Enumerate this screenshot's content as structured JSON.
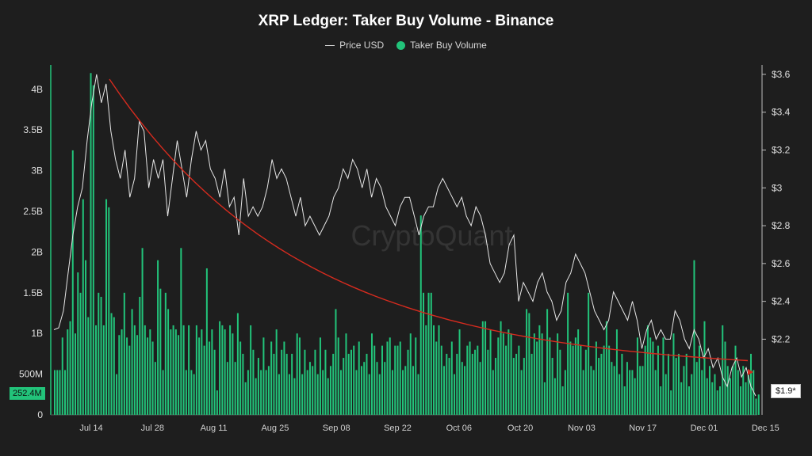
{
  "chart_data": {
    "type": "bar",
    "title": "XRP Ledger: Taker Buy Volume - Binance",
    "legend": [
      {
        "name": "Price USD",
        "color": "#cfcfcf",
        "marker": "line"
      },
      {
        "name": "Taker Buy Volume",
        "color": "#22c37a",
        "marker": "dot"
      }
    ],
    "watermark": "CryptoQuant",
    "x_ticks": [
      "Jul 14",
      "Jul 28",
      "Aug 11",
      "Aug 25",
      "Sep 08",
      "Sep 22",
      "Oct 06",
      "Oct 20",
      "Nov 03",
      "Nov 17",
      "Dec 01",
      "Dec 15"
    ],
    "y_left_ticks": [
      "0",
      "500M",
      "1B",
      "1.5B",
      "2B",
      "2.5B",
      "3B",
      "3.5B",
      "4B"
    ],
    "y_left_range": [
      0,
      4300000000
    ],
    "y_right_ticks": [
      "$2.2",
      "$2.4",
      "$2.6",
      "$2.8",
      "$3",
      "$3.2",
      "$3.4",
      "$3.6"
    ],
    "y_right_range": [
      1.8,
      3.65
    ],
    "current_volume_label": "252.4M",
    "current_price_label": "$1.9*",
    "series": [
      {
        "name": "Taker Buy Volume",
        "unit": "USD",
        "values": [
          0.55,
          0.55,
          0.55,
          0.95,
          0.55,
          1.05,
          1.15,
          3.25,
          1.0,
          1.75,
          1.5,
          2.65,
          1.9,
          1.2,
          4.2,
          4.05,
          1.1,
          1.5,
          1.45,
          1.1,
          2.65,
          2.55,
          1.25,
          1.2,
          0.5,
          0.98,
          1.05,
          1.5,
          0.95,
          0.85,
          1.3,
          1.1,
          0.98,
          1.45,
          2.05,
          1.1,
          0.95,
          1.05,
          0.9,
          0.65,
          1.9,
          1.55,
          0.55,
          1.5,
          1.3,
          1.05,
          1.1,
          1.05,
          0.98,
          2.05,
          1.1,
          0.55,
          1.1,
          0.55,
          0.5,
          1.1,
          0.95,
          1.05,
          0.85,
          1.8,
          0.9,
          1.05,
          0.8,
          0.3,
          1.15,
          1.1,
          1.05,
          0.65,
          1.1,
          1.0,
          0.65,
          1.25,
          0.9,
          0.75,
          0.4,
          0.55,
          1.1,
          0.8,
          0.45,
          0.7,
          0.55,
          0.95,
          0.55,
          0.6,
          0.9,
          0.75,
          1.05,
          0.5,
          0.8,
          0.9,
          0.75,
          0.5,
          0.75,
          0.45,
          1.0,
          0.95,
          0.5,
          0.8,
          0.55,
          0.65,
          0.6,
          0.8,
          0.5,
          0.95,
          0.55,
          0.8,
          0.45,
          0.6,
          0.75,
          1.3,
          0.95,
          0.55,
          0.7,
          1.0,
          0.75,
          0.8,
          0.85,
          0.55,
          0.9,
          0.6,
          0.65,
          0.75,
          0.5,
          1.0,
          0.85,
          0.65,
          0.5,
          0.85,
          0.65,
          0.9,
          0.95,
          0.55,
          0.85,
          0.85,
          0.9,
          0.55,
          0.6,
          0.8,
          1.0,
          0.6,
          0.95,
          0.5,
          2.45,
          1.5,
          1.1,
          1.5,
          1.5,
          1.1,
          0.9,
          1.1,
          0.85,
          0.6,
          0.75,
          0.7,
          0.9,
          0.5,
          0.75,
          1.05,
          0.65,
          0.6,
          0.85,
          0.9,
          0.75,
          0.8,
          0.85,
          0.65,
          1.15,
          1.15,
          0.8,
          1.05,
          0.55,
          0.7,
          0.95,
          1.15,
          1.0,
          0.85,
          1.05,
          1.0,
          0.7,
          0.75,
          0.85,
          0.55,
          0.7,
          1.3,
          1.25,
          0.75,
          1.0,
          0.9,
          1.1,
          1.0,
          0.4,
          1.3,
          0.95,
          0.7,
          0.45,
          1.0,
          0.8,
          0.35,
          0.55,
          1.5,
          0.9,
          0.85,
          0.95,
          1.05,
          0.85,
          0.55,
          0.8,
          1.5,
          0.6,
          0.55,
          0.9,
          0.7,
          0.75,
          0.85,
          1.15,
          0.85,
          0.65,
          0.6,
          1.05,
          0.5,
          0.75,
          0.35,
          0.65,
          0.55,
          0.55,
          0.45,
          0.95,
          0.6,
          0.6,
          0.85,
          1.1,
          0.95,
          0.9,
          0.55,
          0.85,
          0.35,
          0.95,
          0.5,
          0.75,
          0.3,
          1.0,
          0.7,
          0.75,
          0.4,
          0.6,
          0.75,
          0.35,
          0.5,
          1.9,
          0.65,
          0.85,
          0.55,
          1.15,
          0.45,
          0.6,
          0.4,
          0.5,
          0.3,
          0.35,
          1.1,
          0.9,
          0.6,
          0.45,
          0.6,
          0.85,
          0.55,
          0.35,
          0.6,
          0.4,
          0.5,
          0.75,
          0.55,
          0.2,
          0.25
        ]
      },
      {
        "name": "Price USD",
        "unit": "USD",
        "values": [
          2.25,
          2.26,
          2.35,
          2.55,
          2.75,
          2.9,
          3.0,
          3.25,
          3.45,
          3.6,
          3.45,
          3.55,
          3.3,
          3.15,
          3.05,
          3.2,
          2.95,
          3.05,
          3.35,
          3.3,
          3.0,
          3.15,
          3.05,
          3.15,
          2.85,
          3.05,
          3.25,
          3.1,
          2.95,
          3.15,
          3.3,
          3.2,
          3.25,
          3.1,
          3.05,
          2.95,
          3.1,
          2.9,
          2.95,
          2.75,
          3.05,
          2.85,
          2.9,
          2.85,
          2.9,
          3.0,
          3.15,
          3.05,
          3.1,
          3.05,
          2.95,
          2.85,
          2.95,
          2.8,
          2.85,
          2.8,
          2.75,
          2.8,
          2.85,
          2.95,
          3.0,
          3.1,
          3.05,
          3.15,
          3.1,
          3.0,
          3.1,
          2.95,
          3.05,
          3.0,
          2.9,
          2.85,
          2.8,
          2.9,
          2.95,
          2.95,
          2.85,
          2.75,
          2.85,
          2.9,
          2.9,
          3.0,
          3.05,
          3.0,
          2.95,
          2.9,
          2.95,
          2.85,
          2.8,
          2.9,
          2.85,
          2.75,
          2.6,
          2.55,
          2.5,
          2.55,
          2.7,
          2.75,
          2.4,
          2.5,
          2.45,
          2.4,
          2.5,
          2.55,
          2.45,
          2.4,
          2.3,
          2.35,
          2.5,
          2.55,
          2.65,
          2.6,
          2.55,
          2.45,
          2.35,
          2.3,
          2.25,
          2.3,
          2.45,
          2.4,
          2.35,
          2.3,
          2.4,
          2.3,
          2.15,
          2.25,
          2.3,
          2.2,
          2.25,
          2.2,
          2.2,
          2.35,
          2.3,
          2.2,
          2.15,
          2.25,
          2.2,
          2.1,
          2.15,
          2.05,
          2.1,
          2.0,
          1.95,
          2.05,
          2.1,
          2.0,
          2.05,
          1.95,
          1.9
        ]
      }
    ],
    "trend": {
      "name": "trend",
      "color": "#d62b1e"
    }
  }
}
